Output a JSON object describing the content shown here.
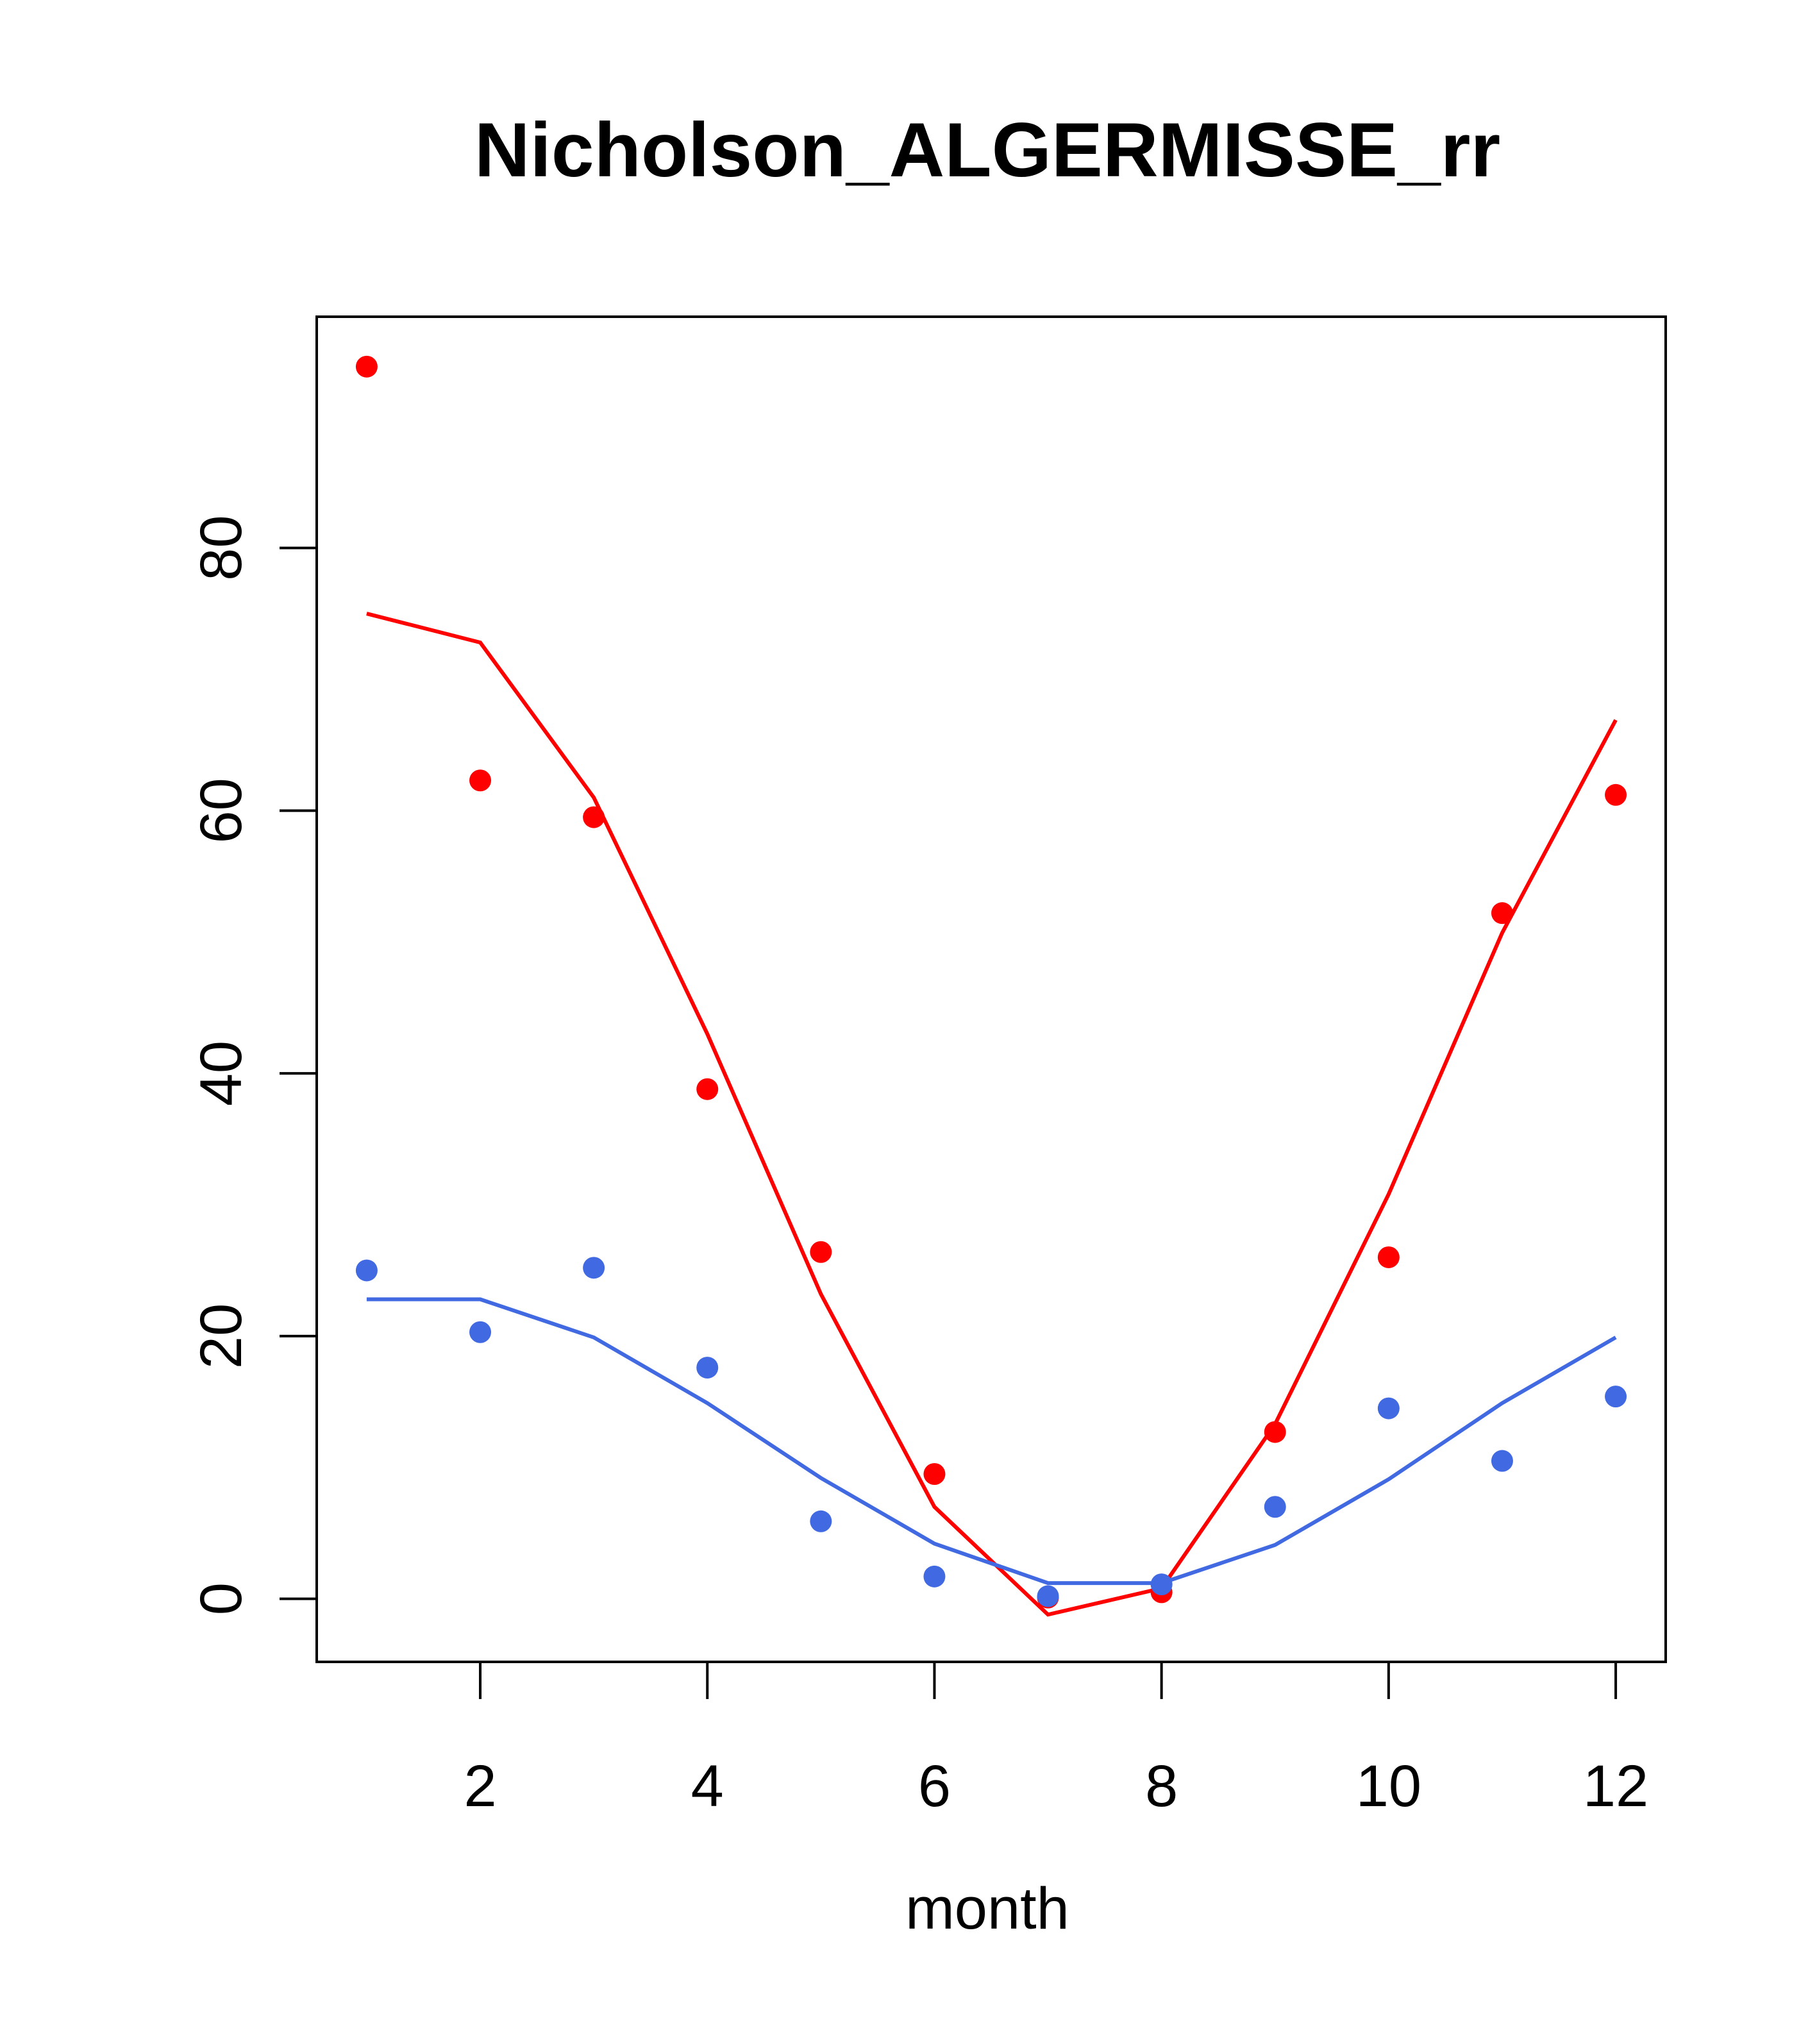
{
  "chart_data": {
    "type": "line",
    "title": "Nicholson_ALGERMISSE_rr",
    "xlabel": "month",
    "ylabel": "",
    "xlim": [
      0.56,
      12.44
    ],
    "ylim": [
      -4.8,
      97.6
    ],
    "x_ticks": [
      "2",
      "4",
      "6",
      "8",
      "10",
      "12"
    ],
    "y_ticks": [
      "0",
      "20",
      "40",
      "60",
      "80"
    ],
    "grid": false,
    "colors": {
      "red": "#ff0000",
      "blue": "#4169e1",
      "axis": "#000000"
    },
    "series": [
      {
        "color": "red",
        "points_x": [
          1,
          2,
          3,
          4,
          5,
          6,
          7,
          8,
          9,
          10,
          11,
          12
        ],
        "points_y": [
          93.8,
          62.3,
          59.5,
          38.8,
          26.4,
          9.5,
          0.1,
          0.5,
          12.7,
          26.0,
          52.2,
          61.2
        ],
        "line_x": [
          1,
          2,
          3,
          4,
          5,
          6,
          7,
          8,
          9,
          10,
          11,
          12
        ],
        "line_y": [
          75.0,
          72.8,
          61.0,
          43.0,
          23.2,
          7.0,
          -1.2,
          0.8,
          13.3,
          30.8,
          50.7,
          66.9
        ]
      },
      {
        "color": "blue",
        "points_x": [
          1,
          2,
          3,
          4,
          5,
          6,
          7,
          8,
          9,
          10,
          11,
          12
        ],
        "points_y": [
          25.0,
          20.3,
          25.2,
          17.6,
          5.9,
          1.7,
          0.2,
          1.1,
          7.0,
          14.5,
          10.5,
          15.4
        ],
        "line_x": [
          1,
          2,
          3,
          4,
          5,
          6,
          7,
          8,
          9,
          10,
          11,
          12
        ],
        "line_y": [
          22.8,
          22.8,
          19.9,
          14.9,
          9.2,
          4.2,
          1.2,
          1.2,
          4.1,
          9.1,
          14.9,
          19.9
        ]
      }
    ]
  }
}
